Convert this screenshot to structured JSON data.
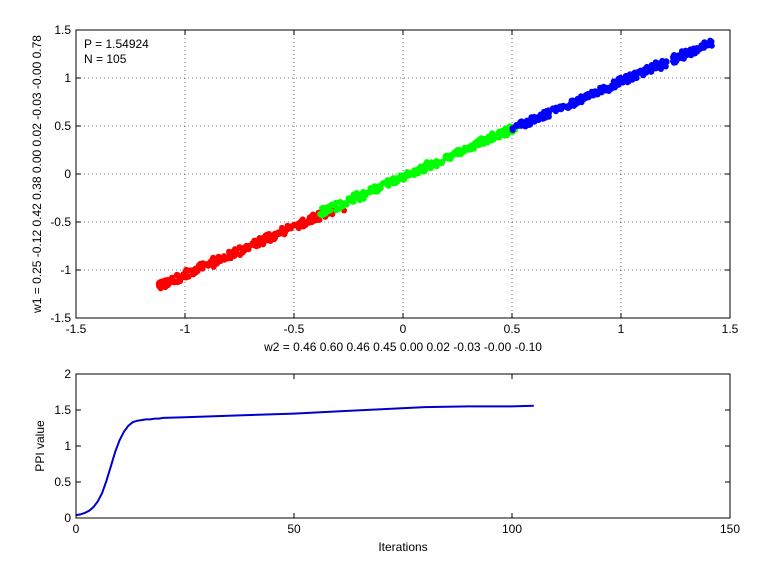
{
  "chart_data": [
    {
      "type": "scatter",
      "annotations": [
        "P = 1.54924",
        "N = 105"
      ],
      "xlabel": "w2 = 0.46  0.60  0.46  0.45  0.00  0.02  -0.03  -0.00  -0.10",
      "ylabel": "w1 = 0.25  -0.12  0.42  0.38  0.00  0.02  -0.03  -0.00  0.78",
      "xlim": [
        -1.5,
        1.5
      ],
      "ylim": [
        -1.5,
        1.5
      ],
      "xticks": [
        -1.5,
        -1,
        -0.5,
        0,
        0.5,
        1,
        1.5
      ],
      "yticks": [
        -1.5,
        -1,
        -0.5,
        0,
        0.5,
        1,
        1.5
      ],
      "xtick_labels": [
        "-1.5",
        "-1",
        "-0.5",
        "0",
        "0.5",
        "1",
        "1.5"
      ],
      "ytick_labels": [
        "-1.5",
        "-1",
        "-0.5",
        "0",
        "0.5",
        "1",
        "1.5"
      ],
      "grid": true,
      "series": [
        {
          "color": "#ff0000",
          "x_range": [
            -1.12,
            -0.32
          ],
          "line": {
            "slope": 1.0,
            "intercept": -0.05
          },
          "extra": [
            [
              -0.27,
              -0.38
            ]
          ]
        },
        {
          "color": "#00ff00",
          "x_range": [
            -0.38,
            0.52
          ],
          "line": {
            "slope": 1.0,
            "intercept": -0.03
          }
        },
        {
          "color": "#0000ff",
          "x_range": [
            0.5,
            1.42
          ],
          "line": {
            "slope": 0.98,
            "intercept": -0.02
          }
        }
      ]
    },
    {
      "type": "line",
      "xlabel": "Iterations",
      "ylabel": "PPI value",
      "xlim": [
        0,
        150
      ],
      "ylim": [
        0,
        2
      ],
      "xticks": [
        0,
        50,
        100,
        150
      ],
      "yticks": [
        0,
        0.5,
        1,
        1.5,
        2
      ],
      "xtick_labels": [
        "0",
        "50",
        "100",
        "150"
      ],
      "ytick_labels": [
        "0",
        "0.5",
        "1",
        "1.5",
        "2"
      ],
      "grid": false,
      "color": "#0000cc",
      "x": [
        0,
        1,
        2,
        3,
        4,
        5,
        6,
        7,
        8,
        9,
        10,
        11,
        12,
        13,
        14,
        15,
        16,
        17,
        18,
        19,
        20,
        25,
        30,
        40,
        50,
        60,
        70,
        80,
        90,
        100,
        105
      ],
      "y": [
        0.04,
        0.05,
        0.07,
        0.1,
        0.15,
        0.23,
        0.35,
        0.52,
        0.72,
        0.92,
        1.08,
        1.2,
        1.28,
        1.33,
        1.35,
        1.36,
        1.37,
        1.37,
        1.38,
        1.38,
        1.39,
        1.4,
        1.41,
        1.43,
        1.45,
        1.48,
        1.51,
        1.54,
        1.55,
        1.55,
        1.56
      ]
    }
  ]
}
